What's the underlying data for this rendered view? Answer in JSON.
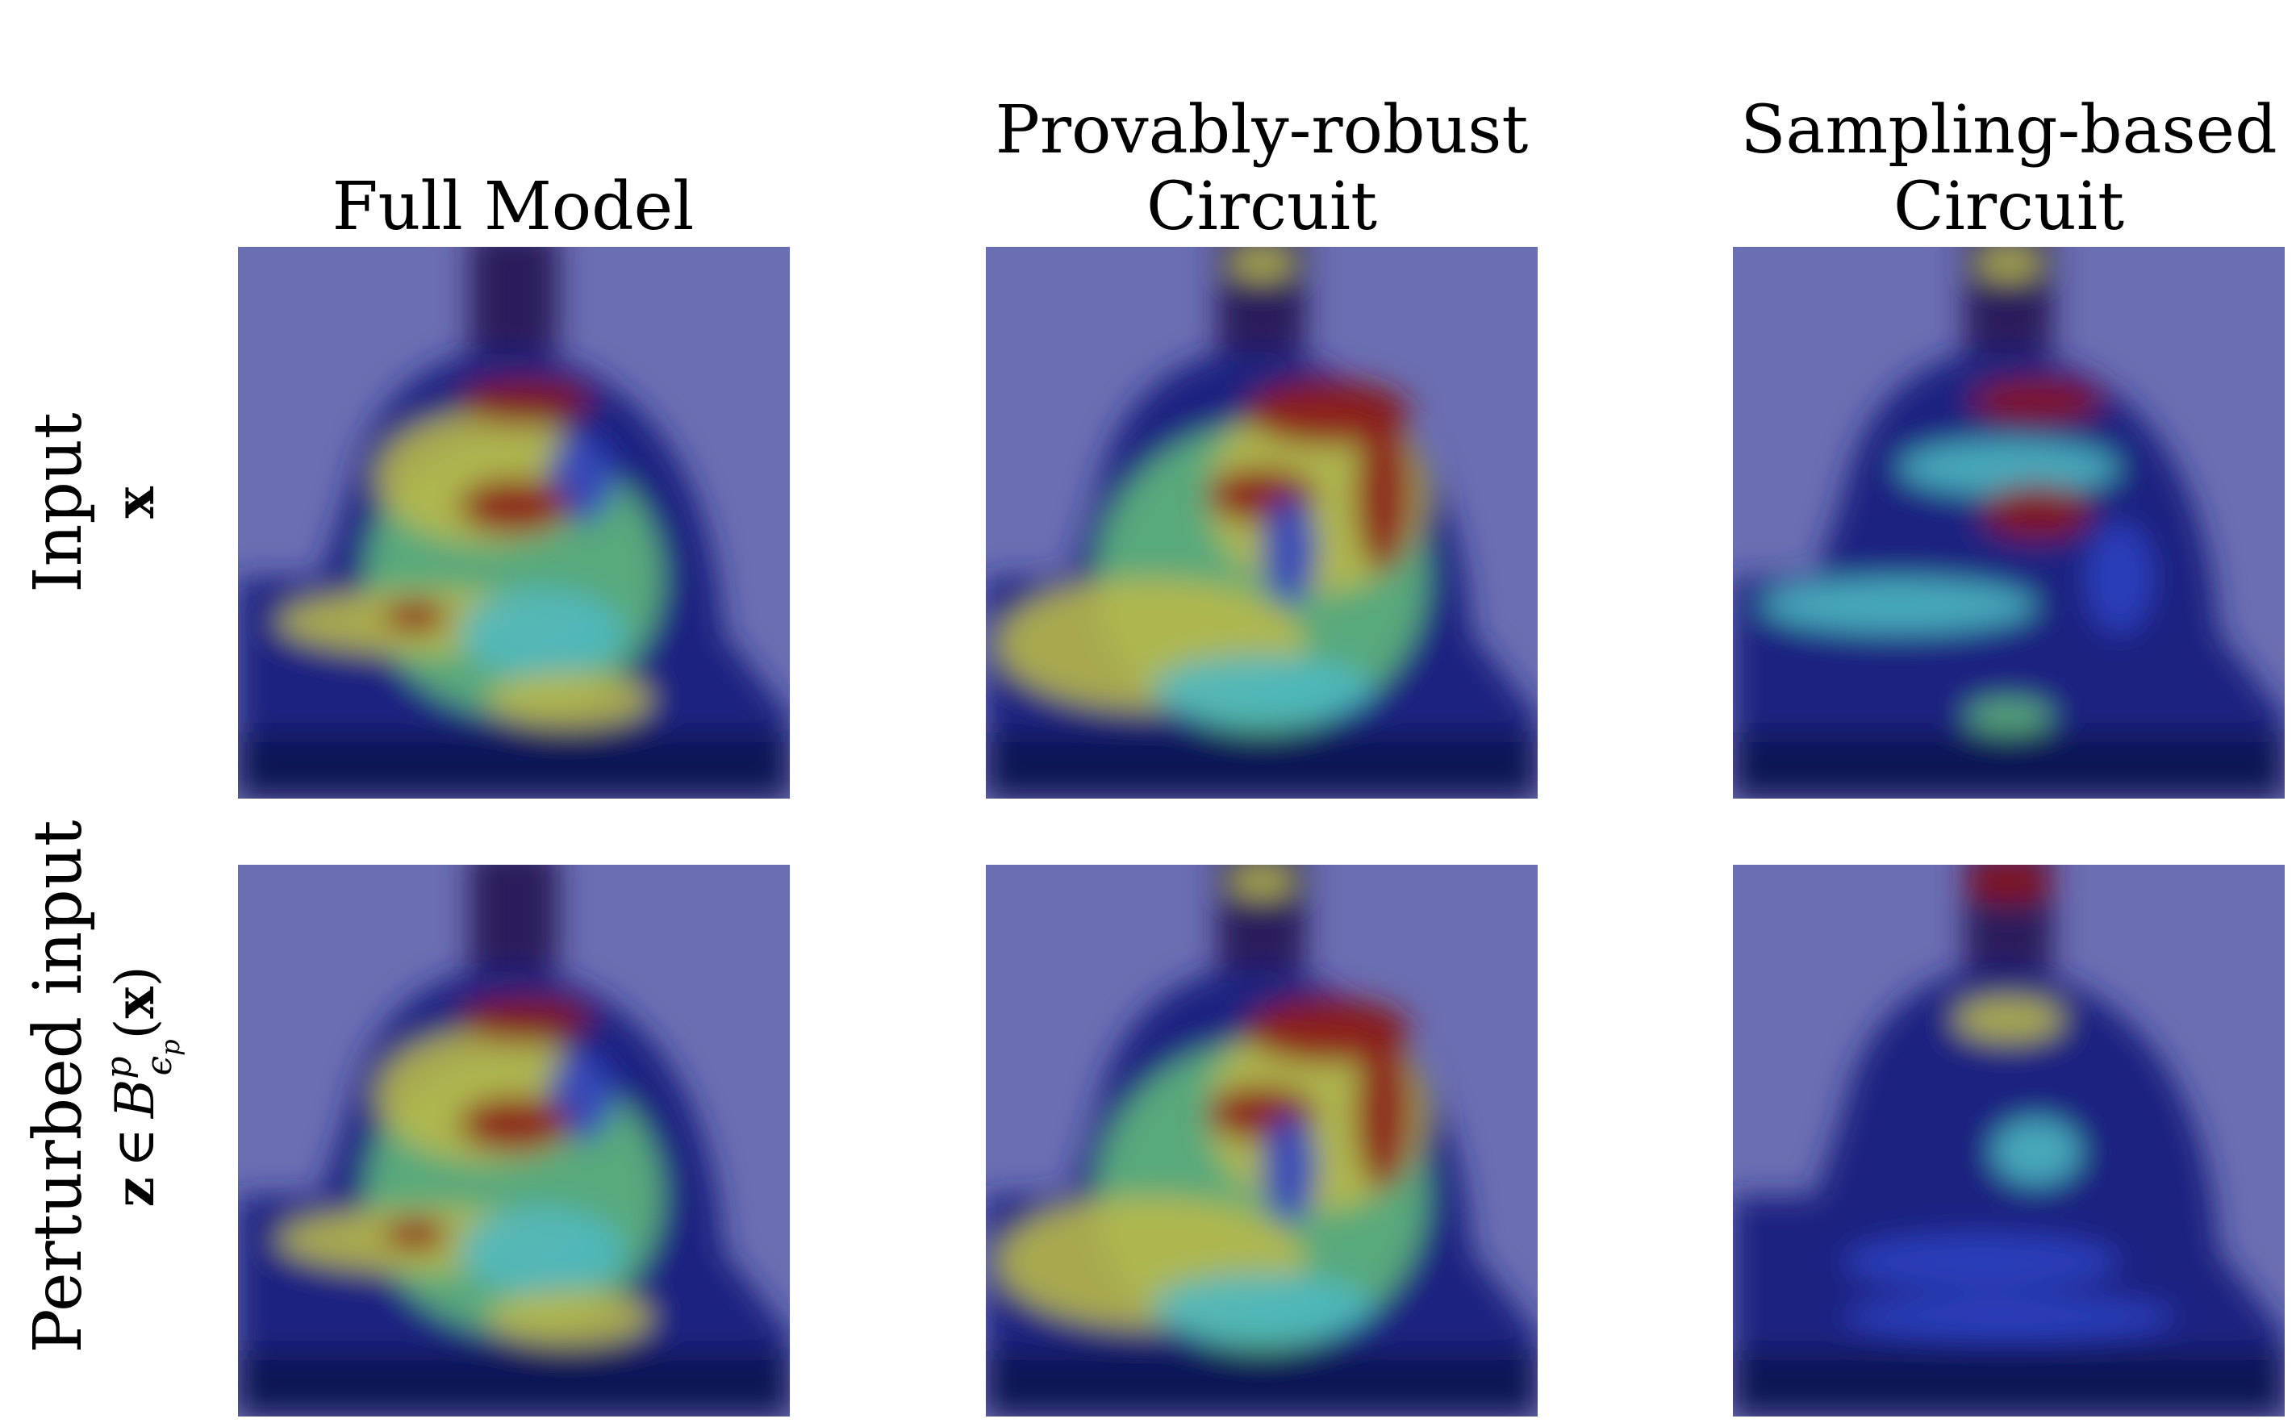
{
  "columns": [
    {
      "lines": [
        "Full Model"
      ]
    },
    {
      "lines": [
        "Provably-robust",
        "Circuit"
      ]
    },
    {
      "lines": [
        "Sampling-based",
        "Circuit"
      ]
    }
  ],
  "rows": [
    {
      "label": "Input",
      "math": {
        "var": "x"
      }
    },
    {
      "label": "Perturbed input",
      "math": {
        "var": "z",
        "rel": "∈",
        "set": "B",
        "sup": "p",
        "sub": "ϵ",
        "subsub": "p",
        "open": "(",
        "arg": "x",
        "close": ")"
      }
    }
  ]
}
